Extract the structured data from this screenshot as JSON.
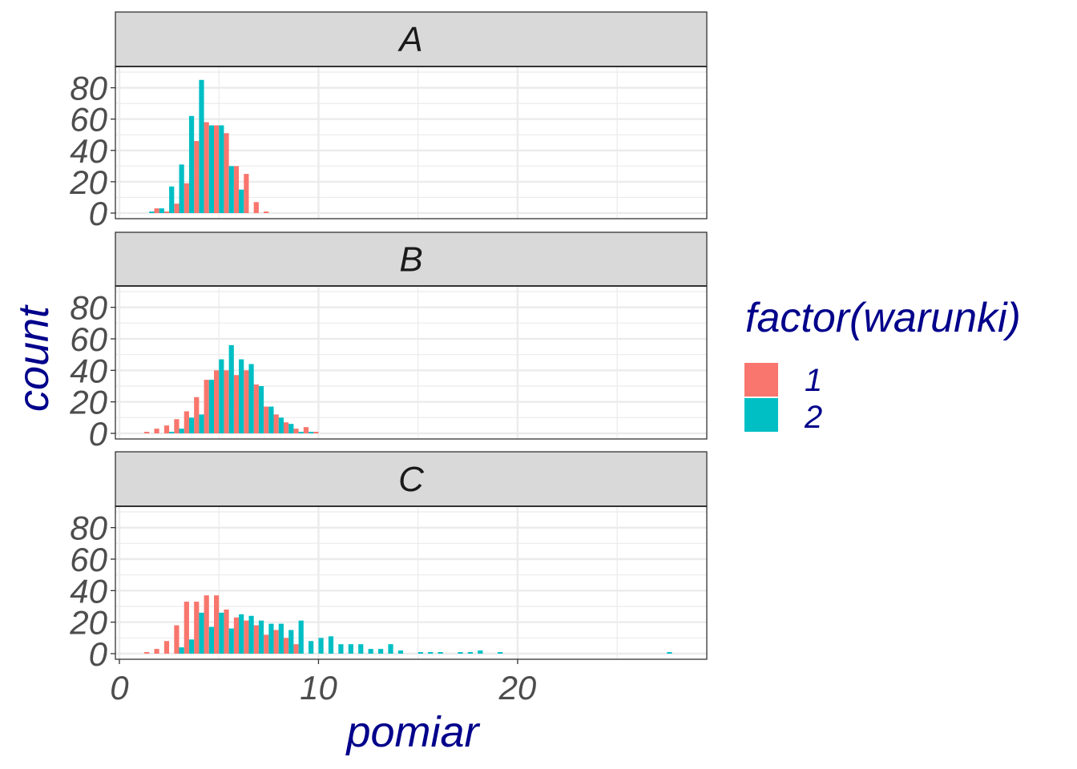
{
  "chart_data": {
    "type": "bar",
    "xlabel": "pomiar",
    "ylabel": "count",
    "xlim": [
      -0.2,
      29.5
    ],
    "ylim": [
      0,
      90
    ],
    "x_ticks": [
      0,
      10,
      20
    ],
    "y_ticks": [
      0,
      20,
      40,
      60,
      80
    ],
    "grid": true,
    "legend": {
      "title": "factor(warunki)",
      "position": "right",
      "entries": [
        {
          "label": "1",
          "color": "#F8766D"
        },
        {
          "label": "2",
          "color": "#00BFC4"
        }
      ]
    },
    "bin_width": 0.5,
    "series_colors": {
      "1": "#F8766D",
      "2": "#00BFC4"
    },
    "panels": [
      {
        "strip": "A",
        "series": [
          {
            "group": "1",
            "bins": [
              [
                2.0,
                3
              ],
              [
                2.5,
                1
              ],
              [
                3.0,
                6
              ],
              [
                3.5,
                19
              ],
              [
                4.0,
                46
              ],
              [
                4.5,
                58
              ],
              [
                5.0,
                56
              ],
              [
                5.5,
                51
              ],
              [
                6.0,
                30
              ],
              [
                6.5,
                25
              ],
              [
                7.0,
                7
              ],
              [
                7.5,
                1
              ]
            ]
          },
          {
            "group": "2",
            "bins": [
              [
                1.5,
                1
              ],
              [
                2.0,
                3
              ],
              [
                2.5,
                17
              ],
              [
                3.0,
                31
              ],
              [
                3.5,
                62
              ],
              [
                4.0,
                85
              ],
              [
                4.5,
                56
              ],
              [
                5.0,
                56
              ],
              [
                5.5,
                30
              ],
              [
                6.0,
                15
              ]
            ]
          }
        ]
      },
      {
        "strip": "B",
        "series": [
          {
            "group": "1",
            "bins": [
              [
                1.5,
                1
              ],
              [
                2.0,
                3
              ],
              [
                2.5,
                5
              ],
              [
                3.0,
                9
              ],
              [
                3.5,
                14
              ],
              [
                4.0,
                23
              ],
              [
                4.5,
                34
              ],
              [
                5.0,
                40
              ],
              [
                5.5,
                40
              ],
              [
                6.0,
                37
              ],
              [
                6.5,
                40
              ],
              [
                7.0,
                31
              ],
              [
                7.5,
                17
              ],
              [
                8.0,
                12
              ],
              [
                8.5,
                7
              ],
              [
                9.0,
                3
              ],
              [
                9.5,
                4
              ],
              [
                10.0,
                1
              ]
            ]
          },
          {
            "group": "2",
            "bins": [
              [
                2.5,
                1
              ],
              [
                3.0,
                3
              ],
              [
                3.5,
                10
              ],
              [
                4.0,
                12
              ],
              [
                4.5,
                34
              ],
              [
                5.0,
                47
              ],
              [
                5.5,
                56
              ],
              [
                6.0,
                47
              ],
              [
                6.5,
                44
              ],
              [
                7.0,
                30
              ],
              [
                7.5,
                17
              ],
              [
                8.0,
                10
              ],
              [
                8.5,
                6
              ],
              [
                9.0,
                1
              ],
              [
                9.5,
                1
              ]
            ]
          }
        ]
      },
      {
        "strip": "C",
        "series": [
          {
            "group": "1",
            "bins": [
              [
                1.5,
                1
              ],
              [
                2.0,
                3
              ],
              [
                2.5,
                8
              ],
              [
                3.0,
                18
              ],
              [
                3.5,
                33
              ],
              [
                4.0,
                33
              ],
              [
                4.5,
                37
              ],
              [
                5.0,
                37
              ],
              [
                5.5,
                28
              ],
              [
                6.0,
                23
              ],
              [
                6.5,
                21
              ],
              [
                7.0,
                18
              ],
              [
                7.5,
                12
              ],
              [
                8.0,
                15
              ],
              [
                8.5,
                10
              ],
              [
                9.0,
                6
              ]
            ]
          },
          {
            "group": "2",
            "bins": [
              [
                3.0,
                4
              ],
              [
                3.5,
                9
              ],
              [
                4.0,
                26
              ],
              [
                4.5,
                17
              ],
              [
                5.0,
                26
              ],
              [
                5.5,
                16
              ],
              [
                6.0,
                25
              ],
              [
                6.5,
                24
              ],
              [
                7.0,
                21
              ],
              [
                7.5,
                19
              ],
              [
                8.0,
                19
              ],
              [
                8.5,
                15
              ],
              [
                9.0,
                21
              ],
              [
                9.5,
                8
              ],
              [
                10.0,
                10
              ],
              [
                10.5,
                11
              ],
              [
                11.0,
                6
              ],
              [
                11.5,
                6
              ],
              [
                12.0,
                6
              ],
              [
                12.5,
                3
              ],
              [
                13.0,
                3
              ],
              [
                13.5,
                6
              ],
              [
                14.0,
                2
              ],
              [
                15.0,
                1
              ],
              [
                15.5,
                1
              ],
              [
                16.0,
                1
              ],
              [
                17.0,
                1
              ],
              [
                17.5,
                1
              ],
              [
                18.0,
                2
              ],
              [
                19.0,
                1
              ],
              [
                27.5,
                1
              ]
            ]
          }
        ]
      }
    ]
  }
}
